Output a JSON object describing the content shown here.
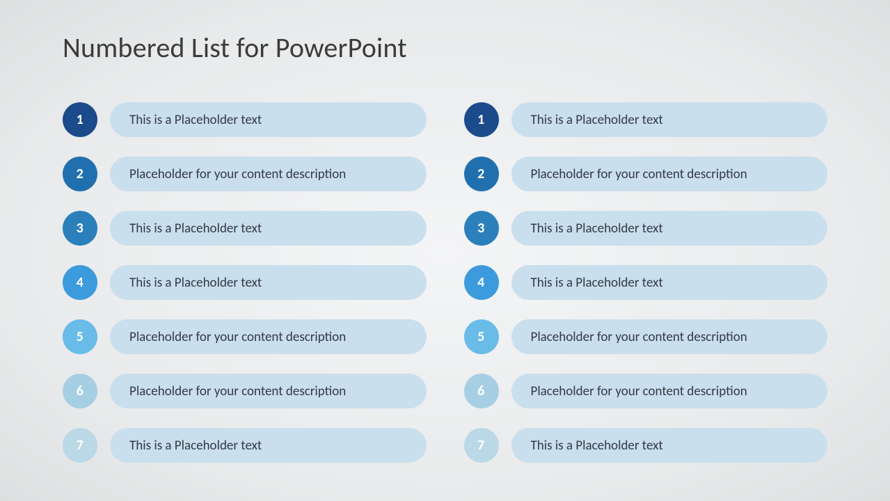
{
  "title": "Numbered List for PowerPoint",
  "layout": {
    "pill_background": "#cadfed",
    "pill_text_color": "#323a45",
    "badge_text_color": "#ffffff",
    "badge_fontsize": 20,
    "pill_fontsize": 19,
    "title_fontsize": 40,
    "title_color": "#3b3b3b",
    "row_gap": 28,
    "column_gap": 54,
    "badge_diameter": 50,
    "pill_height": 50
  },
  "left": {
    "items": [
      {
        "n": "1",
        "text": "This is a Placeholder text",
        "color": "#1c4b8c"
      },
      {
        "n": "2",
        "text": "Placeholder for your content description",
        "color": "#2070b0"
      },
      {
        "n": "3",
        "text": "This is a Placeholder text",
        "color": "#2b80bb"
      },
      {
        "n": "4",
        "text": "This is a Placeholder text",
        "color": "#3c9bdc"
      },
      {
        "n": "5",
        "text": "Placeholder for your content description",
        "color": "#69bbe8"
      },
      {
        "n": "6",
        "text": "Placeholder for your content description",
        "color": "#a7cfe4"
      },
      {
        "n": "7",
        "text": "This is a Placeholder text",
        "color": "#bbd8e7"
      }
    ]
  },
  "right": {
    "items": [
      {
        "n": "1",
        "text": "This is a Placeholder text",
        "color": "#1c4b8c"
      },
      {
        "n": "2",
        "text": "Placeholder for your content description",
        "color": "#2070b0"
      },
      {
        "n": "3",
        "text": "This is a Placeholder text",
        "color": "#2b80bb"
      },
      {
        "n": "4",
        "text": "This is a Placeholder text",
        "color": "#3c9bdc"
      },
      {
        "n": "5",
        "text": "Placeholder for your content description",
        "color": "#69bbe8"
      },
      {
        "n": "6",
        "text": "Placeholder for your content description",
        "color": "#a7cfe4"
      },
      {
        "n": "7",
        "text": "This is a Placeholder text",
        "color": "#bbd8e7"
      }
    ]
  }
}
